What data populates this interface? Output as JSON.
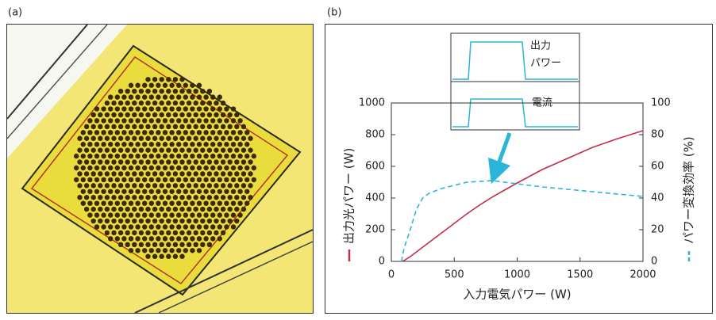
{
  "panel_labels": [
    "(a)",
    "(b)"
  ],
  "inset": {
    "labels": [
      "出力",
      "パワー",
      "電流"
    ]
  },
  "chart_data": {
    "type": "line",
    "xlabel": "入力電気パワー (W)",
    "x": [
      80,
      100,
      150,
      200,
      250,
      300,
      400,
      500,
      600,
      700,
      800,
      900,
      1000,
      1200,
      1400,
      1600,
      1800,
      2000
    ],
    "series": [
      {
        "name": "出力光パワー (W)",
        "color": "#c0304a",
        "dash": false,
        "values": [
          0,
          5,
          30,
          60,
          90,
          120,
          180,
          240,
          300,
          355,
          405,
          450,
          495,
          580,
          650,
          720,
          775,
          825
        ]
      },
      {
        "name": "パワー変換効率 (%)",
        "color": "#2bb5d8",
        "dash": true,
        "axis": "y2",
        "values": [
          0,
          8,
          20,
          33,
          40,
          43,
          46,
          48,
          50,
          50.5,
          51,
          50,
          49,
          47,
          45.5,
          44,
          42.5,
          41
        ]
      }
    ],
    "xlim": [
      0,
      2000
    ],
    "xticks": [
      0,
      500,
      1000,
      1500,
      2000
    ],
    "ylim": [
      0,
      1000
    ],
    "yticks": [
      0,
      200,
      400,
      600,
      800,
      1000
    ],
    "y2lim": [
      0,
      100
    ],
    "y2ticks": [
      0,
      20,
      40,
      60,
      80,
      100
    ]
  }
}
